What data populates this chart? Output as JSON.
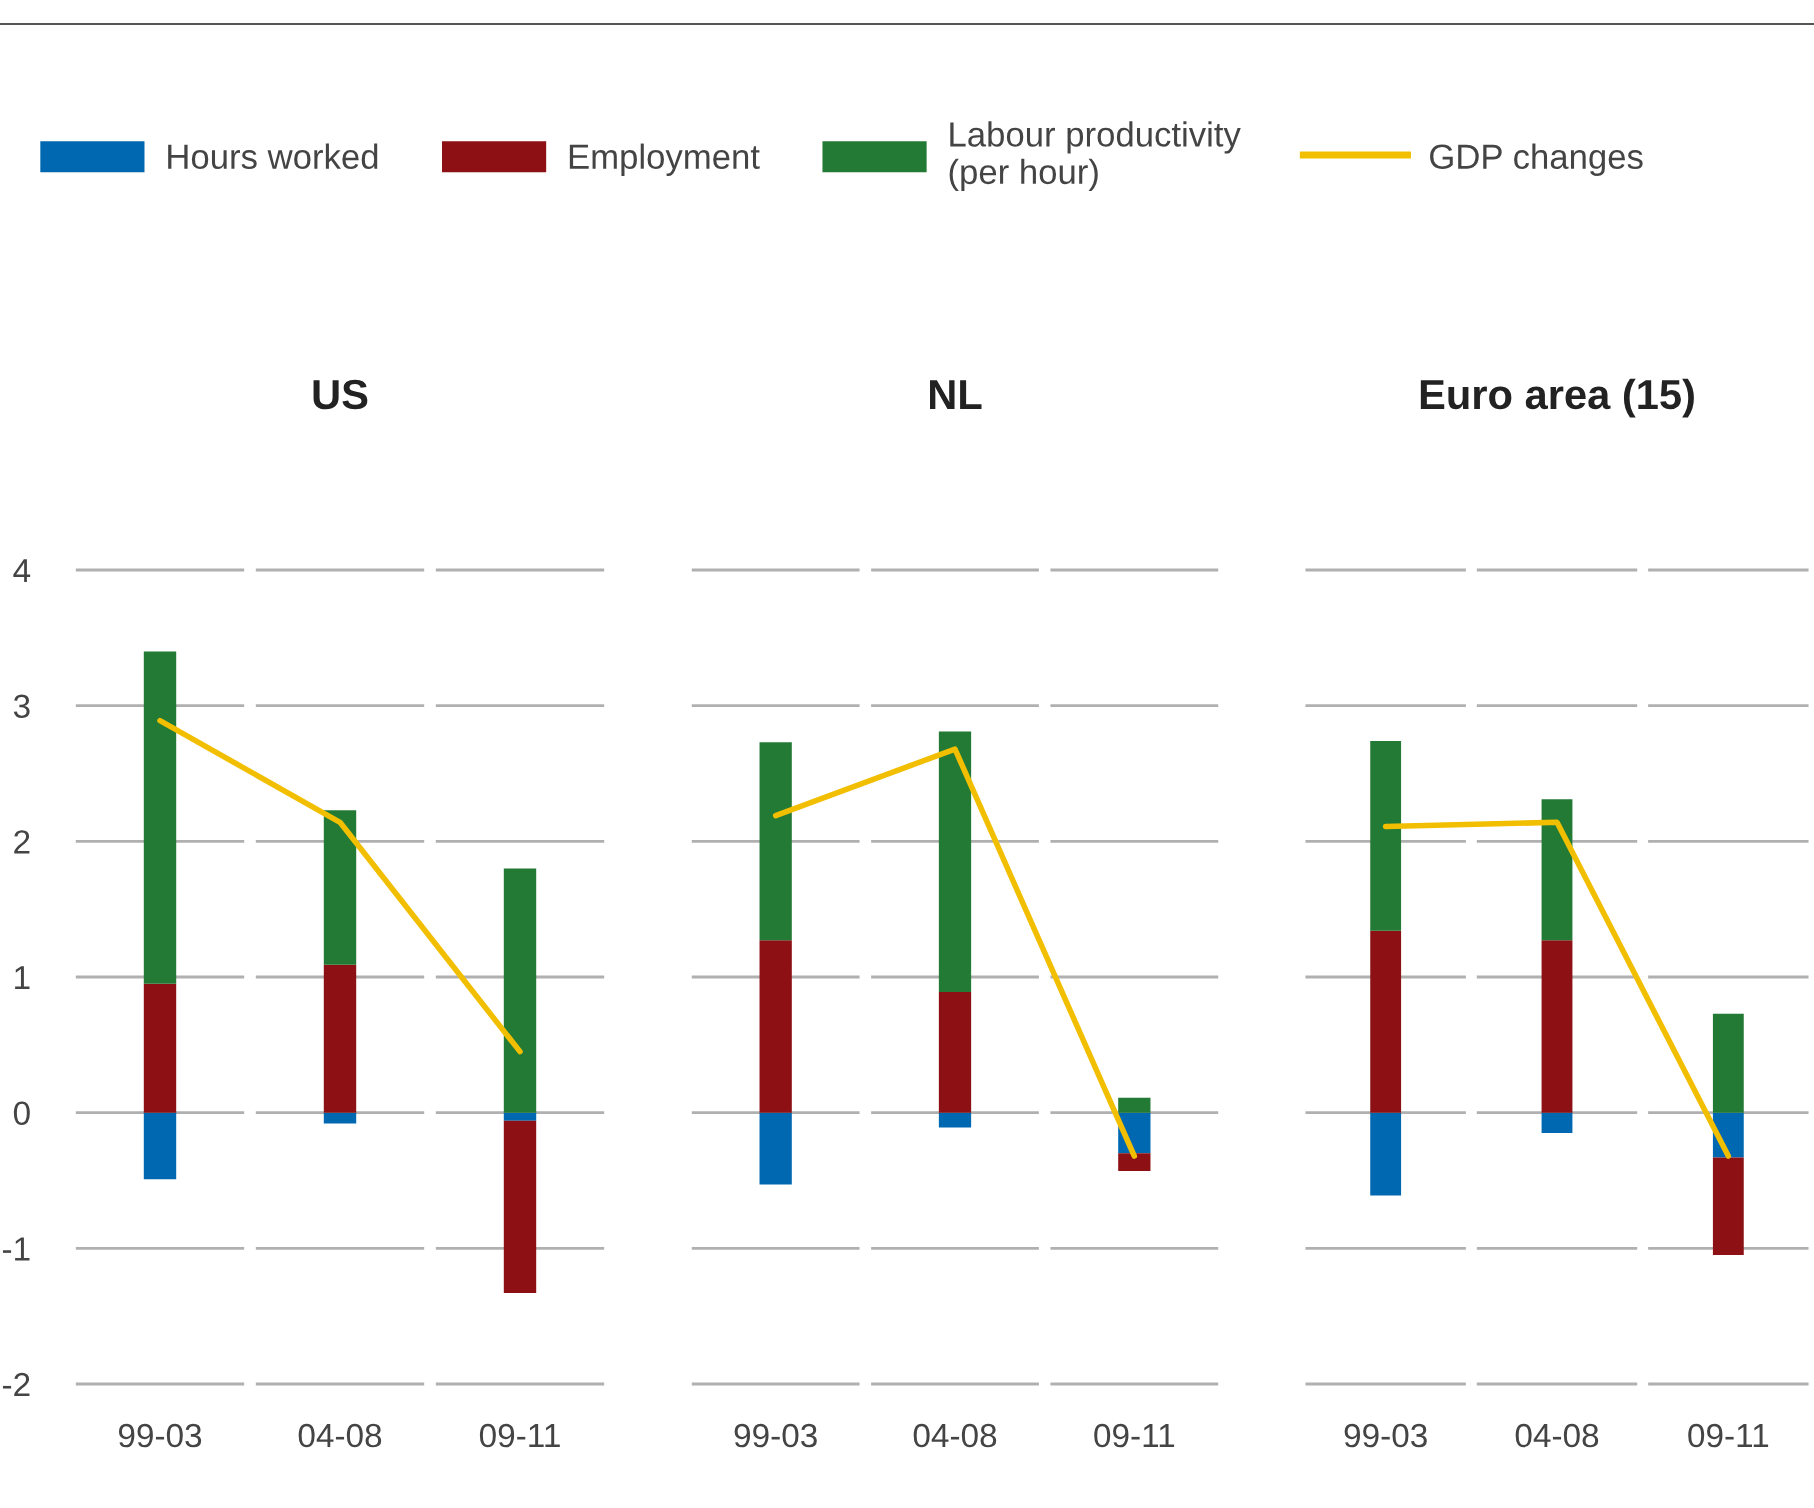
{
  "chart_data": [
    {
      "type": "bar",
      "title": "US",
      "categories": [
        "99-03",
        "04-08",
        "09-11"
      ],
      "stacked": true,
      "ylim": [
        -2,
        4
      ],
      "yticks": [
        -2,
        -1,
        0,
        1,
        2,
        3,
        4
      ],
      "grid": "y",
      "legend": "top",
      "series": [
        {
          "name": "Hours worked",
          "color": "#0068b1",
          "values": [
            -0.49,
            -0.08,
            -0.06
          ]
        },
        {
          "name": "Employment",
          "color": "#8c1014",
          "values": [
            0.95,
            1.09,
            -1.27
          ]
        },
        {
          "name": "Labour productivity\n(per hour)",
          "color": "#237a35",
          "values": [
            2.45,
            1.14,
            1.8
          ]
        },
        {
          "name": "GDP changes",
          "type": "line",
          "color": "#f2bf00",
          "values": [
            2.89,
            2.14,
            0.45
          ]
        }
      ]
    },
    {
      "type": "bar",
      "title": "NL",
      "categories": [
        "99-03",
        "04-08",
        "09-11"
      ],
      "stacked": true,
      "ylim": [
        -2,
        4
      ],
      "yticks": [
        -2,
        -1,
        0,
        1,
        2,
        3,
        4
      ],
      "grid": "y",
      "tick_labels": "x",
      "series": [
        {
          "color": "#0068b1",
          "values": [
            -0.53,
            -0.11,
            -0.3
          ]
        },
        {
          "color": "#8c1014",
          "values": [
            1.27,
            0.89,
            -0.13
          ]
        },
        {
          "color": "#237a35",
          "values": [
            1.46,
            1.92,
            0.11
          ]
        },
        {
          "type": "line",
          "color": "#f2bf00",
          "values": [
            2.19,
            2.68,
            -0.32
          ]
        }
      ]
    },
    {
      "type": "bar",
      "title": "Euro area (15)",
      "categories": [
        "99-03",
        "04-08",
        "09-11"
      ],
      "stacked": true,
      "ylim": [
        -2,
        4
      ],
      "yticks": [
        -2,
        -1,
        0,
        1,
        2,
        3,
        4
      ],
      "grid": "y",
      "tick_labels": "x",
      "series": [
        {
          "color": "#0068b1",
          "values": [
            -0.61,
            -0.15,
            -0.33
          ]
        },
        {
          "color": "#8c1014",
          "values": [
            1.34,
            1.27,
            -0.72
          ]
        },
        {
          "color": "#237a35",
          "values": [
            1.4,
            1.04,
            0.73
          ]
        },
        {
          "type": "line",
          "color": "#f2bf00",
          "values": [
            2.11,
            2.14,
            -0.32
          ]
        }
      ]
    }
  ]
}
